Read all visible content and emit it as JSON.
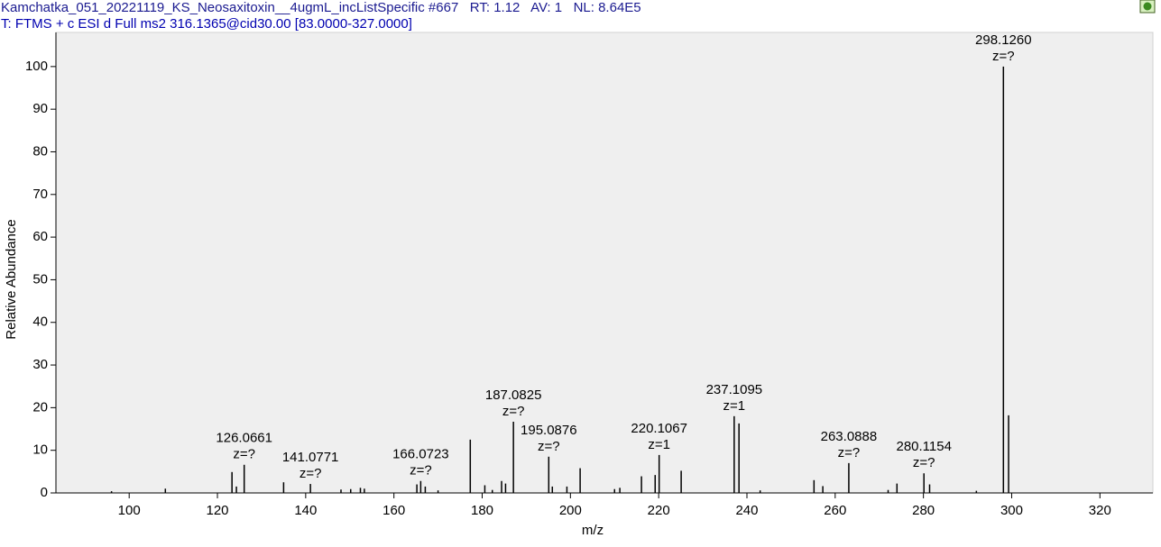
{
  "chart_data": {
    "type": "spectrum",
    "title": "Kamchatka_051_20221119_KS_Neosaxitoxin__4ugmL_incListSpecific #667   RT: 1.12   AV: 1   NL: 8.64E5",
    "subtitle": "T: FTMS + c ESI d Full ms2 316.1365@cid30.00 [83.0000-327.0000]",
    "x_label": "m/z",
    "y_label": "Relative Abundance",
    "color": "#000000",
    "x": [
      96.0,
      108.2,
      123.3,
      124.3,
      126.0661,
      135.0,
      141.0771,
      148.0,
      150.2,
      152.4,
      153.3,
      165.2,
      166.0723,
      167.1,
      170.0,
      177.3,
      180.6,
      182.3,
      184.4,
      185.3,
      187.0825,
      195.0876,
      195.9,
      199.2,
      202.2,
      210.0,
      211.2,
      216.1,
      219.2,
      220.1067,
      225.1,
      237.1095,
      238.2,
      243.0,
      255.2,
      257.2,
      263.0888,
      272.0,
      274.0,
      280.1154,
      281.4,
      292.0,
      298.126,
      299.3
    ],
    "values": [
      0.4,
      1.0,
      4.9,
      1.5,
      6.6,
      2.5,
      2.1,
      0.8,
      0.9,
      1.2,
      1.0,
      2.0,
      2.8,
      1.5,
      0.6,
      12.5,
      1.8,
      0.7,
      2.8,
      2.2,
      16.7,
      8.5,
      1.5,
      1.5,
      5.8,
      0.9,
      1.2,
      3.9,
      4.2,
      8.9,
      5.2,
      18.0,
      16.3,
      0.6,
      3.0,
      1.6,
      7.0,
      0.7,
      2.2,
      4.6,
      2.0,
      0.5,
      100,
      18.2
    ],
    "x_labels": [
      null,
      null,
      null,
      null,
      "126.0661",
      null,
      "141.0771",
      null,
      null,
      null,
      null,
      null,
      "166.0723",
      null,
      null,
      null,
      null,
      null,
      null,
      null,
      "187.0825",
      "195.0876",
      null,
      null,
      null,
      null,
      null,
      null,
      null,
      "220.1067",
      null,
      "237.1095",
      null,
      null,
      null,
      null,
      "263.0888",
      null,
      null,
      "280.1154",
      null,
      null,
      "298.1260",
      null
    ],
    "charges": [
      null,
      null,
      null,
      null,
      "z=?",
      null,
      "z=?",
      null,
      null,
      null,
      null,
      null,
      "z=?",
      null,
      null,
      null,
      null,
      null,
      null,
      null,
      "z=?",
      "z=?",
      null,
      null,
      null,
      null,
      null,
      null,
      null,
      "z=1",
      null,
      "z=1",
      null,
      null,
      null,
      null,
      "z=?",
      null,
      null,
      "z=?",
      null,
      null,
      "z=?",
      null
    ],
    "xlim": [
      83.4,
      332
    ],
    "ylim": [
      0,
      108
    ],
    "xticks": [
      100,
      120,
      140,
      160,
      180,
      200,
      220,
      240,
      260,
      280,
      300,
      320
    ],
    "yticks": [
      0,
      10,
      20,
      30,
      40,
      50,
      60,
      70,
      80,
      90,
      100
    ]
  }
}
